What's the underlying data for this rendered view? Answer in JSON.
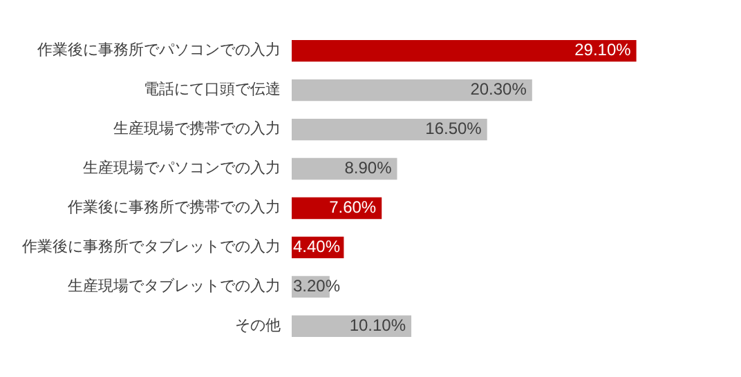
{
  "chart_data": {
    "type": "bar",
    "orientation": "horizontal",
    "categories": [
      "作業後に事務所でパソコンでの入力",
      "電話にて口頭で伝達",
      "生産現場で携帯での入力",
      "生産現場でパソコンでの入力",
      "作業後に事務所で携帯での入力",
      "作業後に事務所でタブレットでの入力",
      "生産現場でタブレットでの入力",
      "その他"
    ],
    "values": [
      29.1,
      20.3,
      16.5,
      8.9,
      7.6,
      4.4,
      3.2,
      10.1
    ],
    "value_labels": [
      "29.10%",
      "20.30%",
      "16.50%",
      "8.90%",
      "7.60%",
      "4.40%",
      "3.20%",
      "10.10%"
    ],
    "colors": [
      "#c00000",
      "#bfbfbf",
      "#bfbfbf",
      "#bfbfbf",
      "#c00000",
      "#c00000",
      "#bfbfbf",
      "#bfbfbf"
    ],
    "grid": false,
    "legend": false
  }
}
